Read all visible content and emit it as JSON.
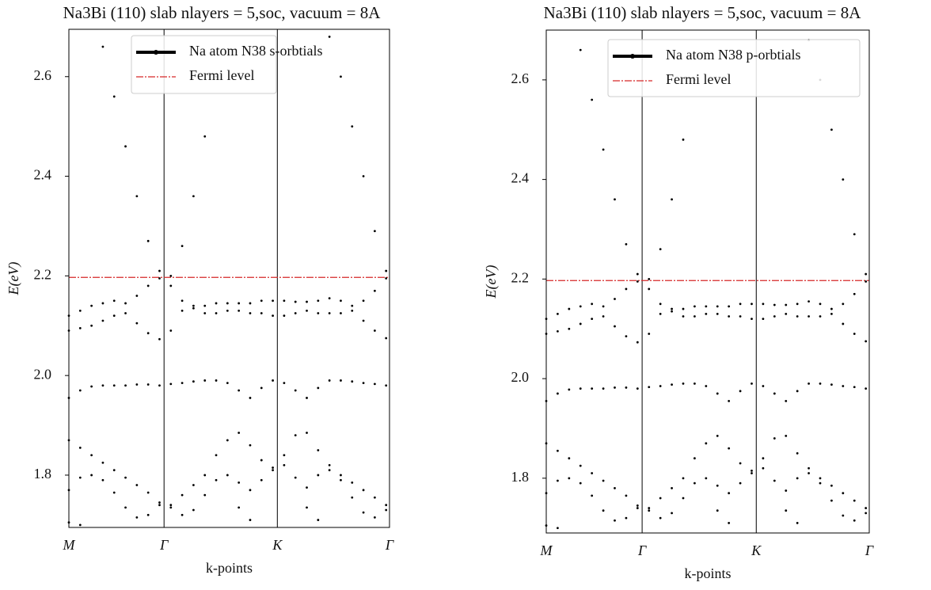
{
  "chart_data": [
    {
      "type": "scatter",
      "title": "Na3Bi (110) slab nlayers = 5,soc, vacuum = 8A",
      "x_label": "k-points",
      "y_label": "E(eV)",
      "x": [
        0,
        0.1,
        0.2,
        0.3,
        0.4,
        0.5,
        0.6,
        0.7,
        0.8,
        0.9,
        1.0,
        1.1,
        1.2,
        1.3,
        1.4,
        1.5,
        1.6,
        1.7,
        1.8,
        1.9,
        2.0,
        2.1,
        2.2,
        2.3,
        2.4,
        2.5,
        2.6,
        2.7,
        2.8
      ],
      "xlim": [
        0,
        2.83
      ],
      "xticks": [
        {
          "value": 0,
          "label": "M"
        },
        {
          "value": 0.84,
          "label": "Γ"
        },
        {
          "value": 1.84,
          "label": "K"
        },
        {
          "value": 2.83,
          "label": "Γ"
        }
      ],
      "ylim": [
        1.695,
        2.695
      ],
      "yticks": [
        1.8,
        {
          "value": 2,
          "label": "2.0"
        },
        2.2,
        2.4,
        2.6
      ],
      "series": [
        {
          "name": "Na atom N38 s-orbtials",
          "color": "#000000",
          "bands": [
            [
              null,
              null,
              null,
              2.66,
              2.56,
              2.46,
              2.36,
              2.27,
              2.21,
              2.2,
              2.26,
              2.36,
              2.48,
              2.6,
              null,
              null,
              null,
              null,
              null,
              null,
              null,
              null,
              null,
              2.68,
              2.6,
              2.5,
              2.4,
              2.29,
              2.21
            ],
            [
              2.12,
              2.13,
              2.14,
              2.145,
              2.15,
              2.145,
              2.16,
              2.18,
              2.195,
              2.18,
              2.15,
              2.14,
              2.14,
              2.145,
              2.145,
              2.145,
              2.145,
              2.15,
              2.15,
              2.15,
              2.148,
              2.148,
              2.15,
              2.155,
              2.15,
              2.14,
              2.15,
              2.17,
              2.195
            ],
            [
              2.09,
              2.095,
              2.1,
              2.11,
              2.12,
              2.125,
              2.105,
              2.085,
              2.073,
              2.09,
              2.13,
              2.135,
              2.125,
              2.125,
              2.13,
              2.13,
              2.125,
              2.125,
              2.12,
              2.12,
              2.125,
              2.13,
              2.125,
              2.125,
              2.125,
              2.13,
              2.11,
              2.09,
              2.075
            ],
            [
              1.955,
              1.97,
              1.978,
              1.98,
              1.98,
              1.98,
              1.982,
              1.982,
              1.98,
              1.983,
              1.985,
              1.988,
              1.99,
              1.99,
              1.985,
              1.97,
              1.955,
              1.975,
              1.99,
              1.985,
              1.97,
              1.955,
              1.975,
              1.99,
              1.99,
              1.988,
              1.985,
              1.983,
              1.98
            ],
            [
              1.87,
              1.855,
              1.84,
              1.825,
              1.81,
              1.795,
              1.78,
              1.765,
              1.745,
              1.74,
              1.76,
              1.78,
              1.8,
              1.84,
              1.87,
              1.885,
              1.86,
              1.83,
              1.81,
              1.84,
              1.88,
              1.885,
              1.85,
              1.82,
              1.8,
              1.785,
              1.77,
              1.755,
              1.74
            ],
            [
              1.77,
              1.795,
              1.8,
              1.79,
              1.765,
              1.735,
              1.715,
              1.72,
              1.74,
              1.735,
              1.72,
              1.73,
              1.76,
              1.79,
              1.8,
              1.785,
              1.77,
              1.79,
              1.815,
              1.82,
              1.795,
              1.775,
              1.8,
              1.81,
              1.79,
              1.755,
              1.725,
              1.715,
              1.73
            ],
            [
              1.705,
              1.7,
              null,
              null,
              null,
              null,
              null,
              null,
              null,
              null,
              null,
              null,
              null,
              null,
              null,
              1.735,
              1.71,
              null,
              null,
              null,
              null,
              1.735,
              1.71,
              null,
              null,
              null,
              null,
              null,
              null
            ]
          ]
        }
      ],
      "hlines": [
        {
          "name": "Fermi level",
          "color": "#d62728",
          "value": 2.197
        }
      ]
    },
    {
      "type": "scatter",
      "title": "Na3Bi (110) slab nlayers = 5,soc, vacuum = 8A",
      "x_label": "k-points",
      "y_label": "E(eV)",
      "x": [
        0,
        0.1,
        0.2,
        0.3,
        0.4,
        0.5,
        0.6,
        0.7,
        0.8,
        0.9,
        1.0,
        1.1,
        1.2,
        1.3,
        1.4,
        1.5,
        1.6,
        1.7,
        1.8,
        1.9,
        2.0,
        2.1,
        2.2,
        2.3,
        2.4,
        2.5,
        2.6,
        2.7,
        2.8
      ],
      "xlim": [
        0,
        2.83
      ],
      "xticks": [
        {
          "value": 0,
          "label": "M"
        },
        {
          "value": 0.84,
          "label": "Γ"
        },
        {
          "value": 1.84,
          "label": "K"
        },
        {
          "value": 2.83,
          "label": "Γ"
        }
      ],
      "ylim": [
        1.69,
        2.7
      ],
      "yticks": [
        1.8,
        {
          "value": 2,
          "label": "2.0"
        },
        2.2,
        2.4,
        2.6
      ],
      "series": [
        {
          "name": "Na atom N38 p-orbtials",
          "color": "#000000",
          "bands": [
            [
              null,
              null,
              null,
              2.66,
              2.56,
              2.46,
              2.36,
              2.27,
              2.21,
              2.2,
              2.26,
              2.36,
              2.48,
              2.6,
              null,
              null,
              null,
              null,
              null,
              null,
              null,
              null,
              null,
              2.68,
              2.6,
              2.5,
              2.4,
              2.29,
              2.21
            ],
            [
              2.12,
              2.13,
              2.14,
              2.145,
              2.15,
              2.145,
              2.16,
              2.18,
              2.195,
              2.18,
              2.15,
              2.14,
              2.14,
              2.145,
              2.145,
              2.145,
              2.145,
              2.15,
              2.15,
              2.15,
              2.148,
              2.148,
              2.15,
              2.155,
              2.15,
              2.14,
              2.15,
              2.17,
              2.195
            ],
            [
              2.09,
              2.095,
              2.1,
              2.11,
              2.12,
              2.125,
              2.105,
              2.085,
              2.073,
              2.09,
              2.13,
              2.135,
              2.125,
              2.125,
              2.13,
              2.13,
              2.125,
              2.125,
              2.12,
              2.12,
              2.125,
              2.13,
              2.125,
              2.125,
              2.125,
              2.13,
              2.11,
              2.09,
              2.075
            ],
            [
              1.955,
              1.97,
              1.978,
              1.98,
              1.98,
              1.98,
              1.982,
              1.982,
              1.98,
              1.983,
              1.985,
              1.988,
              1.99,
              1.99,
              1.985,
              1.97,
              1.955,
              1.975,
              1.99,
              1.985,
              1.97,
              1.955,
              1.975,
              1.99,
              1.99,
              1.988,
              1.985,
              1.983,
              1.98
            ],
            [
              1.87,
              1.855,
              1.84,
              1.825,
              1.81,
              1.795,
              1.78,
              1.765,
              1.745,
              1.74,
              1.76,
              1.78,
              1.8,
              1.84,
              1.87,
              1.885,
              1.86,
              1.83,
              1.81,
              1.84,
              1.88,
              1.885,
              1.85,
              1.82,
              1.8,
              1.785,
              1.77,
              1.755,
              1.74
            ],
            [
              1.77,
              1.795,
              1.8,
              1.79,
              1.765,
              1.735,
              1.715,
              1.72,
              1.74,
              1.735,
              1.72,
              1.73,
              1.76,
              1.79,
              1.8,
              1.785,
              1.77,
              1.79,
              1.815,
              1.82,
              1.795,
              1.775,
              1.8,
              1.81,
              1.79,
              1.755,
              1.725,
              1.715,
              1.73
            ],
            [
              1.705,
              1.7,
              null,
              null,
              null,
              null,
              null,
              null,
              null,
              null,
              null,
              null,
              null,
              null,
              null,
              1.735,
              1.71,
              null,
              null,
              null,
              null,
              1.735,
              1.71,
              null,
              null,
              null,
              null,
              null,
              null
            ]
          ]
        }
      ],
      "hlines": [
        {
          "name": "Fermi level",
          "color": "#d62728",
          "value": 2.197
        }
      ]
    }
  ]
}
